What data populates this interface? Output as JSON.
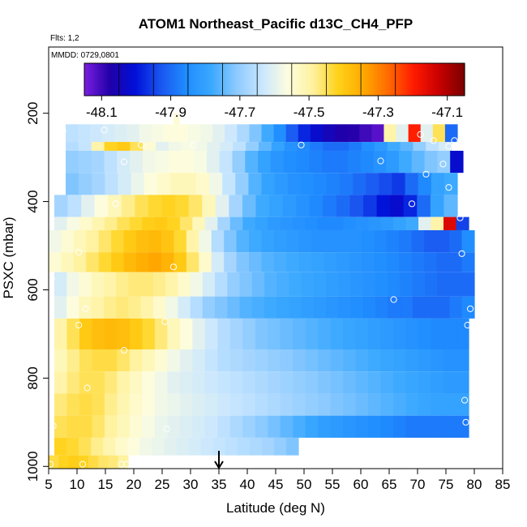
{
  "chart_data": {
    "type": "heatmap",
    "title": "ATOM1 Northeast_Pacific d13C_CH4_PFP",
    "flts_label": "Flts: 1,2",
    "mmdd_label": "MMDD: 0729,0801",
    "xlabel": "Latitude (deg N)",
    "ylabel": "PSXC (mbar)",
    "xlim": [
      5,
      85
    ],
    "ylim": [
      1005,
      50
    ],
    "x_ticks": [
      5,
      10,
      15,
      20,
      25,
      30,
      35,
      40,
      45,
      50,
      55,
      60,
      65,
      70,
      75,
      80,
      85
    ],
    "y_ticks": [
      200,
      400,
      600,
      800,
      1000
    ],
    "colorbar": {
      "ticks": [
        "-48.1",
        "-47.9",
        "-47.7",
        "-47.5",
        "-47.3",
        "-47.1"
      ],
      "range": [
        -48.15,
        -47.05
      ],
      "colors": [
        "#7b1fe0",
        "#2200a8",
        "#0010d8",
        "#1a55f0",
        "#1f8cff",
        "#3aa8ff",
        "#8ccaff",
        "#c8e6ff",
        "#fdfde0",
        "#fff2a0",
        "#ffd21a",
        "#ffaa00",
        "#ff6a00",
        "#ff1a00",
        "#c80000",
        "#7a0000"
      ]
    },
    "marker_latitude": 35,
    "rows": [
      {
        "p0": 200,
        "p1": 225,
        "x0": 27,
        "x1": 28,
        "values": [
          -47.55
        ]
      },
      {
        "p0": 225,
        "p1": 265,
        "x0": 8,
        "x1": 77,
        "values": [
          -47.65,
          -47.64,
          -47.63,
          -47.62,
          -47.61,
          -47.6,
          -47.58,
          -47.57,
          -47.56,
          -47.56,
          -47.57,
          -47.58,
          -47.6,
          -47.63,
          -47.67,
          -47.72,
          -47.78,
          -47.85,
          -47.92,
          -47.98,
          -48.02,
          -48.05,
          -48.07,
          -48.08,
          -48.1,
          -48.12,
          -47.5,
          -47.6,
          -47.2,
          -47.6,
          -47.45,
          -47.9
        ]
      },
      {
        "p0": 265,
        "p1": 285,
        "x0": 8,
        "x1": 76,
        "values": [
          -47.66,
          -47.64,
          -47.5,
          -47.42,
          -47.4,
          -47.45,
          -47.55,
          -47.6,
          -47.58,
          -47.57,
          -47.58,
          -47.6,
          -47.62,
          -47.65,
          -47.7,
          -47.75,
          -47.8,
          -47.84,
          -47.86,
          -47.88,
          -47.9,
          -47.9,
          -47.88,
          -47.85,
          -47.82,
          -47.78,
          -47.75,
          -47.7,
          -47.65,
          -47.62
        ]
      },
      {
        "p0": 285,
        "p1": 335,
        "x0": 8,
        "x1": 78,
        "values": [
          -47.7,
          -47.69,
          -47.68,
          -47.65,
          -47.62,
          -47.6,
          -47.58,
          -47.57,
          -47.56,
          -47.56,
          -47.57,
          -47.6,
          -47.64,
          -47.7,
          -47.76,
          -47.8,
          -47.83,
          -47.85,
          -47.86,
          -47.87,
          -47.88,
          -47.88,
          -47.87,
          -47.86,
          -47.84,
          -47.82,
          -47.78,
          -47.75,
          -47.72,
          -47.7,
          -48.02
        ]
      },
      {
        "p0": 335,
        "p1": 385,
        "x0": 8,
        "x1": 77,
        "values": [
          -47.72,
          -47.7,
          -47.68,
          -47.65,
          -47.62,
          -47.59,
          -47.56,
          -47.54,
          -47.52,
          -47.52,
          -47.54,
          -47.58,
          -47.64,
          -47.7,
          -47.76,
          -47.8,
          -47.82,
          -47.84,
          -47.85,
          -47.86,
          -47.87,
          -47.88,
          -47.9,
          -47.92,
          -47.94,
          -47.96,
          -47.9,
          -47.86,
          -47.8,
          -47.78
        ]
      },
      {
        "p0": 385,
        "p1": 435,
        "x0": 6,
        "x1": 77,
        "values": [
          -47.68,
          -47.65,
          -47.6,
          -47.56,
          -47.52,
          -47.48,
          -47.45,
          -47.43,
          -47.42,
          -47.43,
          -47.46,
          -47.52,
          -47.6,
          -47.68,
          -47.74,
          -47.78,
          -47.8,
          -47.82,
          -47.84,
          -47.86,
          -47.88,
          -47.9,
          -47.93,
          -47.96,
          -48.0,
          -48.02,
          -47.98,
          -47.9,
          -47.8,
          -47.75
        ]
      },
      {
        "p0": 435,
        "p1": 465,
        "x0": 6,
        "x1": 79,
        "values": [
          -47.6,
          -47.57,
          -47.54,
          -47.51,
          -47.48,
          -47.45,
          -47.43,
          -47.41,
          -47.4,
          -47.42,
          -47.46,
          -47.52,
          -47.6,
          -47.68,
          -47.74,
          -47.78,
          -47.8,
          -47.82,
          -47.83,
          -47.84,
          -47.85,
          -47.86,
          -47.86,
          -47.85,
          -47.84,
          -47.83,
          -47.82,
          -47.8,
          -47.78,
          -47.6,
          -47.5,
          -47.15,
          -47.95
        ]
      },
      {
        "p0": 465,
        "p1": 515,
        "x0": 5,
        "x1": 80,
        "values": [
          -47.58,
          -47.55,
          -47.52,
          -47.49,
          -47.46,
          -47.43,
          -47.4,
          -47.38,
          -47.37,
          -47.39,
          -47.43,
          -47.5,
          -47.58,
          -47.66,
          -47.72,
          -47.76,
          -47.78,
          -47.8,
          -47.81,
          -47.82,
          -47.83,
          -47.84,
          -47.84,
          -47.84,
          -47.84,
          -47.85,
          -47.86,
          -47.87,
          -47.88,
          -47.9,
          -47.92,
          -47.92,
          -47.9,
          -47.85
        ]
      },
      {
        "p0": 515,
        "p1": 560,
        "x0": 5,
        "x1": 80,
        "values": [
          -47.55,
          -47.52,
          -47.49,
          -47.46,
          -47.43,
          -47.4,
          -47.37,
          -47.35,
          -47.34,
          -47.36,
          -47.4,
          -47.46,
          -47.54,
          -47.62,
          -47.68,
          -47.72,
          -47.74,
          -47.76,
          -47.77,
          -47.78,
          -47.79,
          -47.8,
          -47.81,
          -47.82,
          -47.83,
          -47.84,
          -47.85,
          -47.86,
          -47.87,
          -47.88,
          -47.89,
          -47.9,
          -47.9,
          -47.88
        ]
      },
      {
        "p0": 560,
        "p1": 615,
        "x0": 6,
        "x1": 80,
        "values": [
          -47.62,
          -47.58,
          -47.55,
          -47.52,
          -47.5,
          -47.48,
          -47.47,
          -47.47,
          -47.48,
          -47.5,
          -47.54,
          -47.58,
          -47.62,
          -47.66,
          -47.7,
          -47.72,
          -47.74,
          -47.76,
          -47.77,
          -47.78,
          -47.79,
          -47.8,
          -47.81,
          -47.82,
          -47.83,
          -47.84,
          -47.85,
          -47.86,
          -47.87,
          -47.88,
          -47.89,
          -47.9,
          -47.9,
          -47.9
        ]
      },
      {
        "p0": 615,
        "p1": 665,
        "x0": 6,
        "x1": 80,
        "values": [
          -47.6,
          -47.56,
          -47.52,
          -47.5,
          -47.48,
          -47.47,
          -47.48,
          -47.5,
          -47.54,
          -47.58,
          -47.62,
          -47.66,
          -47.7,
          -47.72,
          -47.74,
          -47.76,
          -47.77,
          -47.78,
          -47.79,
          -47.8,
          -47.81,
          -47.82,
          -47.83,
          -47.84,
          -47.85,
          -47.86,
          -47.87,
          -47.88,
          -47.88,
          -47.9,
          -47.9,
          -47.9,
          -47.88,
          -47.86
        ]
      },
      {
        "p0": 665,
        "p1": 735,
        "x0": 6,
        "x1": 79,
        "values": [
          -47.5,
          -47.45,
          -47.4,
          -47.38,
          -47.37,
          -47.38,
          -47.4,
          -47.43,
          -47.47,
          -47.52,
          -47.56,
          -47.6,
          -47.63,
          -47.66,
          -47.68,
          -47.7,
          -47.72,
          -47.73,
          -47.74,
          -47.75,
          -47.76,
          -47.77,
          -47.78,
          -47.79,
          -47.8,
          -47.81,
          -47.82,
          -47.83,
          -47.84,
          -47.85,
          -47.86,
          -47.86,
          -47.86
        ]
      },
      {
        "p0": 735,
        "p1": 785,
        "x0": 6,
        "x1": 79,
        "values": [
          -47.52,
          -47.48,
          -47.45,
          -47.44,
          -47.44,
          -47.46,
          -47.49,
          -47.52,
          -47.55,
          -47.58,
          -47.6,
          -47.62,
          -47.64,
          -47.66,
          -47.67,
          -47.68,
          -47.69,
          -47.7,
          -47.71,
          -47.72,
          -47.73,
          -47.74,
          -47.75,
          -47.76,
          -47.77,
          -47.78,
          -47.79,
          -47.8,
          -47.81,
          -47.82,
          -47.83,
          -47.84,
          -47.84
        ]
      },
      {
        "p0": 785,
        "p1": 835,
        "x0": 6,
        "x1": 79,
        "values": [
          -47.5,
          -47.47,
          -47.45,
          -47.45,
          -47.47,
          -47.5,
          -47.53,
          -47.56,
          -47.58,
          -47.6,
          -47.61,
          -47.62,
          -47.63,
          -47.64,
          -47.65,
          -47.66,
          -47.67,
          -47.68,
          -47.69,
          -47.7,
          -47.71,
          -47.72,
          -47.73,
          -47.74,
          -47.75,
          -47.76,
          -47.77,
          -47.78,
          -47.79,
          -47.8,
          -47.81,
          -47.82,
          -47.82
        ]
      },
      {
        "p0": 835,
        "p1": 885,
        "x0": 6,
        "x1": 79,
        "values": [
          -47.47,
          -47.45,
          -47.44,
          -47.45,
          -47.48,
          -47.51,
          -47.54,
          -47.56,
          -47.58,
          -47.59,
          -47.6,
          -47.61,
          -47.62,
          -47.63,
          -47.64,
          -47.65,
          -47.66,
          -47.67,
          -47.68,
          -47.69,
          -47.7,
          -47.71,
          -47.72,
          -47.73,
          -47.74,
          -47.75,
          -47.76,
          -47.77,
          -47.78,
          -47.79,
          -47.8,
          -47.8,
          -47.8
        ]
      },
      {
        "p0": 885,
        "p1": 935,
        "x0": 6,
        "x1": 79,
        "values": [
          -47.45,
          -47.44,
          -47.44,
          -47.46,
          -47.49,
          -47.52,
          -47.55,
          -47.57,
          -47.59,
          -47.6,
          -47.61,
          -47.62,
          -47.63,
          -47.65,
          -47.67,
          -47.69,
          -47.71,
          -47.73,
          -47.75,
          -47.77,
          -47.79,
          -47.81,
          -47.82,
          -47.83,
          -47.84,
          -47.85,
          -47.86,
          -47.87,
          -47.88,
          -47.88,
          -47.88,
          -47.88,
          -47.88
        ]
      },
      {
        "p0": 935,
        "p1": 975,
        "x0": 6,
        "x1": 49,
        "values": [
          -47.42,
          -47.43,
          -47.45,
          -47.48,
          -47.51,
          -47.54,
          -47.56,
          -47.58,
          -47.59,
          -47.6,
          -47.61,
          -47.62,
          -47.63,
          -47.64,
          -47.65,
          -47.66,
          -47.67,
          -47.68,
          -47.7,
          -47.72
        ]
      },
      {
        "p0": 975,
        "p1": 1005,
        "x0": 5,
        "x1": 19,
        "values": [
          -47.44,
          -47.42,
          -47.41,
          -47.42,
          -47.44,
          -47.46,
          -47.47,
          -47.49
        ]
      }
    ],
    "points": [
      {
        "lat": 27.3,
        "p": 200
      },
      {
        "lat": 7.5,
        "p": 240
      },
      {
        "lat": 14.8,
        "p": 238
      },
      {
        "lat": 67.3,
        "p": 218
      },
      {
        "lat": 70.5,
        "p": 248
      },
      {
        "lat": 72.8,
        "p": 262
      },
      {
        "lat": 76.5,
        "p": 262
      },
      {
        "lat": 21.3,
        "p": 272
      },
      {
        "lat": 30.5,
        "p": 272
      },
      {
        "lat": 49.5,
        "p": 272
      },
      {
        "lat": 75.5,
        "p": 275
      },
      {
        "lat": 18.3,
        "p": 310
      },
      {
        "lat": 63.5,
        "p": 308
      },
      {
        "lat": 74.5,
        "p": 315
      },
      {
        "lat": 71.5,
        "p": 338
      },
      {
        "lat": 75.5,
        "p": 368
      },
      {
        "lat": 16.8,
        "p": 405
      },
      {
        "lat": 69.0,
        "p": 405
      },
      {
        "lat": 77.5,
        "p": 437
      },
      {
        "lat": 10.3,
        "p": 515
      },
      {
        "lat": 77.8,
        "p": 518
      },
      {
        "lat": 27.0,
        "p": 548
      },
      {
        "lat": 5.5,
        "p": 575
      },
      {
        "lat": 65.8,
        "p": 622
      },
      {
        "lat": 79.3,
        "p": 643
      },
      {
        "lat": 11.5,
        "p": 643
      },
      {
        "lat": 10.3,
        "p": 680
      },
      {
        "lat": 25.5,
        "p": 672
      },
      {
        "lat": 78.8,
        "p": 680
      },
      {
        "lat": 18.3,
        "p": 737
      },
      {
        "lat": 11.8,
        "p": 822
      },
      {
        "lat": 78.3,
        "p": 850
      },
      {
        "lat": 78.5,
        "p": 900
      },
      {
        "lat": 25.8,
        "p": 915
      },
      {
        "lat": 5.8,
        "p": 908
      },
      {
        "lat": 5.3,
        "p": 995
      },
      {
        "lat": 11.0,
        "p": 995
      },
      {
        "lat": 17.8,
        "p": 995
      },
      {
        "lat": 18.8,
        "p": 995
      }
    ]
  }
}
